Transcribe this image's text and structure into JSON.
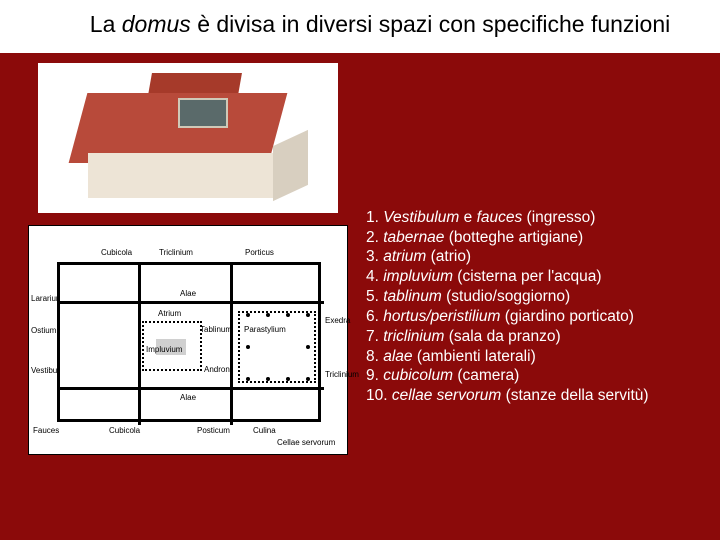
{
  "title": {
    "pre": "La ",
    "italic": "domus",
    "post": " è divisa in diversi spazi con specifiche funzioni"
  },
  "colors": {
    "background": "#8b0a0a",
    "title_bg": "#ffffff",
    "title_text": "#000000",
    "legend_text": "#ffffff",
    "roof": "#b84a3a",
    "roof_dark": "#a63a2a",
    "wall": "#ede4d6",
    "plan_line": "#000000"
  },
  "typography": {
    "title_fontsize": 23,
    "legend_fontsize": 15.5,
    "plan_label_fontsize": 8
  },
  "legend": [
    {
      "num": "1.",
      "term": "Vestibulum",
      "conj": " e ",
      "term2": "fauces",
      "gloss": " (ingresso)"
    },
    {
      "num": "2.",
      "term": "tabernae",
      "gloss": " (botteghe artigiane)"
    },
    {
      "num": "3.",
      "term": "atrium",
      "gloss": " (atrio)"
    },
    {
      "num": "4.",
      "term": "impluvium",
      "gloss": " (cisterna per l'acqua)"
    },
    {
      "num": "5.",
      "term": "tablinum",
      "gloss": " (studio/soggiorno)"
    },
    {
      "num": "6.",
      "term": "hortus/peristilium",
      "gloss": " (giardino porticato)"
    },
    {
      "num": "7.",
      "term": "triclinium",
      "gloss": " (sala da pranzo)"
    },
    {
      "num": "8.",
      "term": "alae",
      "gloss": " (ambienti laterali)"
    },
    {
      "num": "9.",
      "term": "cubicolum",
      "gloss": " (camera)"
    },
    {
      "num": "10.",
      "term": "cellae servorum",
      "gloss": " (stanze della servitù)"
    }
  ],
  "floorplan_labels": {
    "cubicola": "Cubicola",
    "triclinium": "Triclinium",
    "porticus": "Porticus",
    "lararium": "Lararium",
    "ostium": "Ostium",
    "atrium": "Atrium",
    "impluvium": "Impluvium",
    "tablinum": "Tablinum",
    "parastylium": "Parastylium",
    "exedra": "Exedra",
    "andron": "Andron",
    "triclinium2": "Triclinium",
    "vestibulum": "Vestibulum",
    "alae_top": "Alae",
    "alae_bot": "Alae",
    "fauces": "Fauces",
    "cubicola2": "Cubicola",
    "posticum": "Posticum",
    "culina": "Culina",
    "cellae": "Cellae servorum"
  }
}
